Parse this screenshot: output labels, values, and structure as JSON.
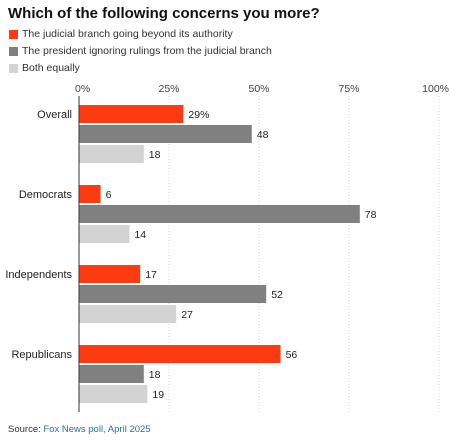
{
  "chart_data": {
    "type": "bar",
    "orientation": "horizontal",
    "title": "Which of the following concerns you more?",
    "categories": [
      "Overall",
      "Democrats",
      "Independents",
      "Republicans"
    ],
    "series": [
      {
        "name": "The judicial branch going beyond its authority",
        "color": "#fd3a10",
        "values": [
          29,
          6,
          17,
          56
        ],
        "labels": [
          "29%",
          "6",
          "17",
          "56"
        ]
      },
      {
        "name": "The president ignoring rulings from the judicial branch",
        "color": "#808080",
        "values": [
          48,
          78,
          52,
          18
        ],
        "labels": [
          "48",
          "78",
          "52",
          "18"
        ]
      },
      {
        "name": "Both equally",
        "color": "#d3d3d3",
        "values": [
          18,
          14,
          27,
          19
        ],
        "labels": [
          "18",
          "14",
          "27",
          "19"
        ]
      }
    ],
    "xlim": [
      0,
      100
    ],
    "x_ticks": [
      "0%",
      "25%",
      "50%",
      "75%",
      "100%"
    ],
    "grid": true,
    "legend": "top-left",
    "source_prefix": "Source: ",
    "source_text": "Fox News poll, April 2025"
  }
}
